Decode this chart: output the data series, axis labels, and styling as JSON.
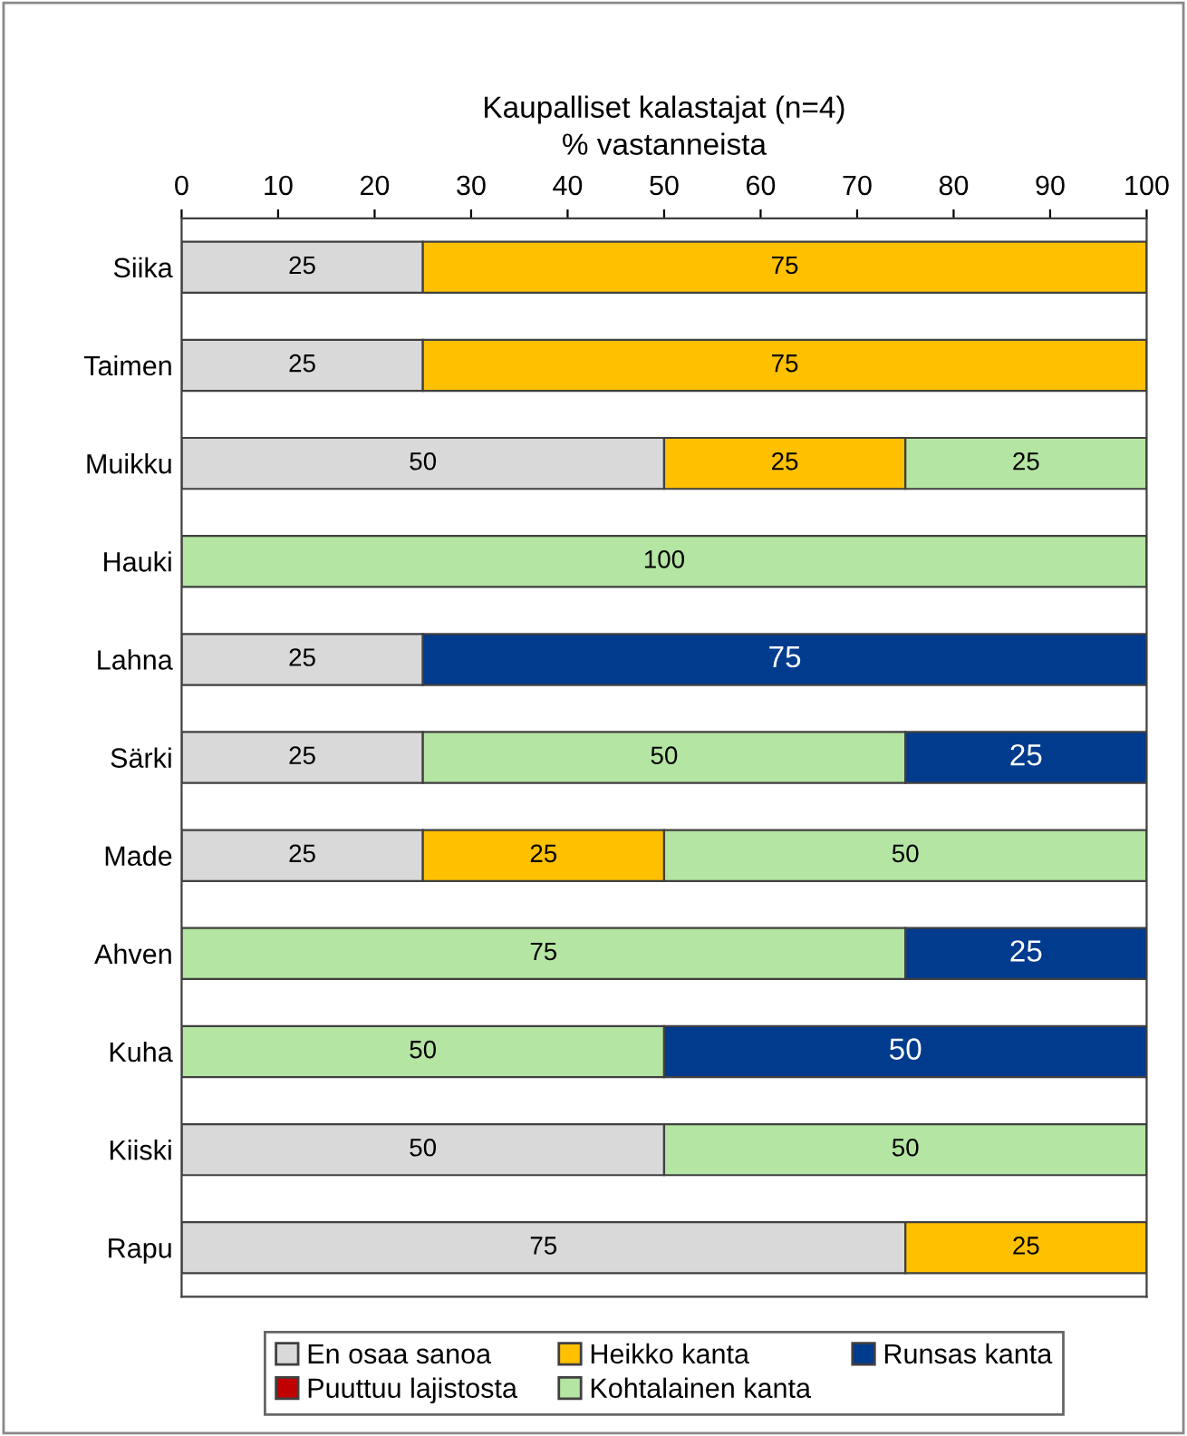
{
  "chart_data": {
    "type": "bar",
    "orientation": "horizontal",
    "stacked": true,
    "title": "Kaupalliset kalastajat (n=4)",
    "xlabel": "% vastanneista",
    "categories": [
      "Siika",
      "Taimen",
      "Muikku",
      "Hauki",
      "Lahna",
      "Särki",
      "Made",
      "Ahven",
      "Kuha",
      "Kiiski",
      "Rapu"
    ],
    "series": [
      {
        "name": "En osaa sanoa",
        "color": "#d9d9d9",
        "values": [
          25,
          25,
          50,
          null,
          25,
          25,
          25,
          null,
          null,
          50,
          75
        ]
      },
      {
        "name": "Puuttuu lajistosta",
        "color": "#c00000",
        "values": [
          null,
          null,
          null,
          null,
          null,
          null,
          null,
          null,
          null,
          null,
          null
        ]
      },
      {
        "name": "Heikko kanta",
        "color": "#ffc000",
        "values": [
          75,
          75,
          25,
          null,
          null,
          null,
          25,
          null,
          null,
          null,
          25
        ]
      },
      {
        "name": "Kohtalainen kanta",
        "color": "#b4e5a2",
        "values": [
          null,
          null,
          25,
          100,
          null,
          50,
          50,
          75,
          50,
          50,
          null
        ]
      },
      {
        "name": "Runsas kanta",
        "color": "#003b8e",
        "values": [
          null,
          null,
          null,
          null,
          75,
          25,
          null,
          25,
          50,
          null,
          null
        ]
      }
    ],
    "xlim": [
      0,
      100
    ],
    "xticks": [
      0,
      10,
      20,
      30,
      40,
      50,
      60,
      70,
      80,
      90,
      100
    ],
    "grid": false,
    "legend": "bottom",
    "data_labels": true
  }
}
